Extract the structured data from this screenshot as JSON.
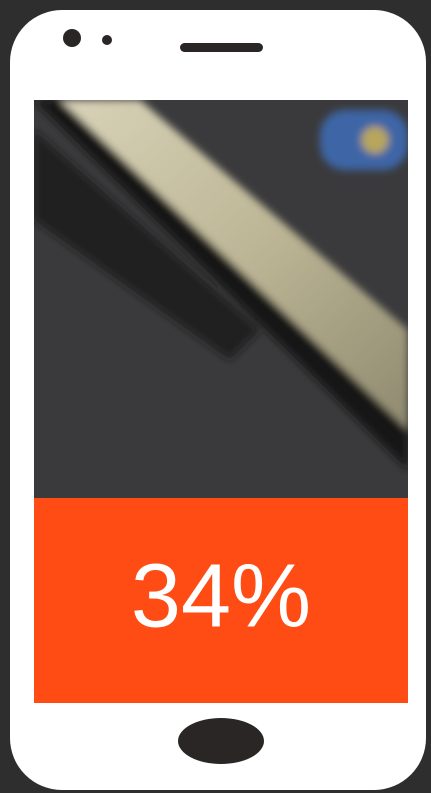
{
  "chart_data": {
    "type": "fill",
    "values": [
      34
    ],
    "value_labels": [
      "34%"
    ],
    "ylim": [
      0,
      100
    ],
    "color": "#ff4b14"
  }
}
